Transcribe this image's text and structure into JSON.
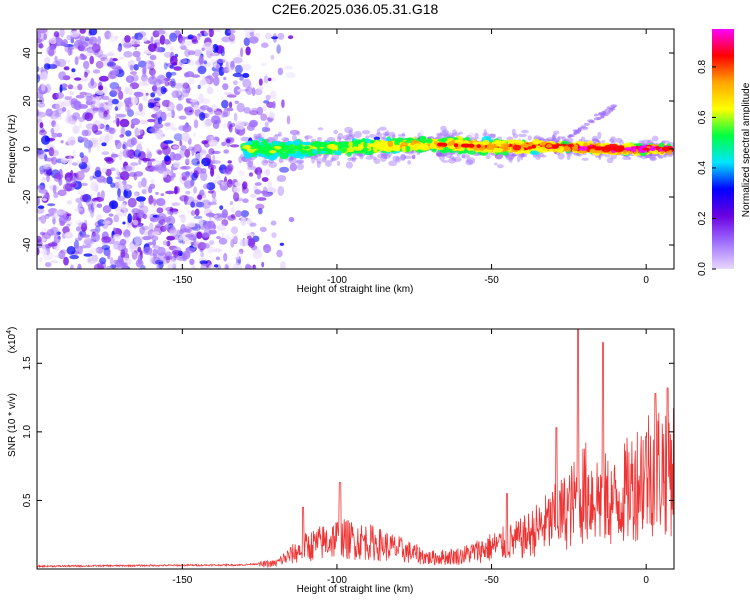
{
  "title": "C2E6.2025.036.05.31.G18",
  "spectrogram": {
    "ylabel": "Frequency (Hz)",
    "xlabel": "Height of straight line (km)",
    "xlim": [
      -197,
      9
    ],
    "ylim": [
      -50,
      50
    ],
    "xticks": [
      -150,
      -100,
      -50,
      0
    ],
    "yticks": [
      -40,
      -20,
      0,
      20,
      40
    ],
    "colorbar": {
      "label": "Normalized spectral amplitude",
      "range": [
        0,
        0.95
      ],
      "ticks": [
        "0.0",
        "0.2",
        "0.4",
        "0.6",
        "0.8"
      ],
      "colors": [
        "#e8d8ff",
        "#a070ff",
        "#6a00e0",
        "#0000ff",
        "#00e5ff",
        "#00ff40",
        "#ffff00",
        "#ffa500",
        "#ff0000",
        "#ff00ff"
      ]
    },
    "noise_region": [
      -197,
      -120
    ],
    "line_track": {
      "heights": [
        -130,
        -110,
        -90,
        -70,
        -50,
        -30,
        -10,
        8
      ],
      "frequency": [
        0,
        0,
        1,
        2,
        1,
        1,
        0,
        0
      ],
      "half_width": [
        4,
        3,
        3,
        3,
        3,
        2,
        2,
        1.5
      ]
    },
    "side_feature": {
      "heights": [
        -25,
        -10
      ],
      "frequency": [
        5,
        18
      ]
    }
  },
  "snr": {
    "ylabel": "SNR (10 * v/v)",
    "xlabel": "Height of straight line (km)",
    "scale_label": "(x10^4)",
    "scale_base": "(x10",
    "scale_exp": "4",
    "xlim": [
      -197,
      9
    ],
    "ylim": [
      0,
      1.75
    ],
    "xticks": [
      -150,
      -100,
      -50,
      0
    ],
    "yticks": [
      "0.5",
      "1.0",
      "1.5"
    ],
    "line_color": "#ee3333",
    "type": "line",
    "envelope": {
      "heights": [
        -197,
        -130,
        -120,
        -110,
        -100,
        -90,
        -80,
        -70,
        -60,
        -50,
        -40,
        -30,
        -25,
        -20,
        -15,
        -10,
        -5,
        0,
        9
      ],
      "snr_x1e4": [
        0.02,
        0.03,
        0.05,
        0.2,
        0.28,
        0.25,
        0.18,
        0.1,
        0.12,
        0.2,
        0.28,
        0.45,
        0.55,
        0.7,
        0.65,
        0.6,
        0.75,
        0.9,
        0.95
      ]
    },
    "peaks": [
      {
        "height": -111,
        "snr_x1e4": 0.45
      },
      {
        "height": -99,
        "snr_x1e4": 0.63
      },
      {
        "height": -45,
        "snr_x1e4": 0.55
      },
      {
        "height": -29,
        "snr_x1e4": 1.03
      },
      {
        "height": -22,
        "snr_x1e4": 1.75
      },
      {
        "height": -14,
        "snr_x1e4": 1.65
      },
      {
        "height": 3,
        "snr_x1e4": 1.28
      },
      {
        "height": 7,
        "snr_x1e4": 1.32
      }
    ]
  }
}
